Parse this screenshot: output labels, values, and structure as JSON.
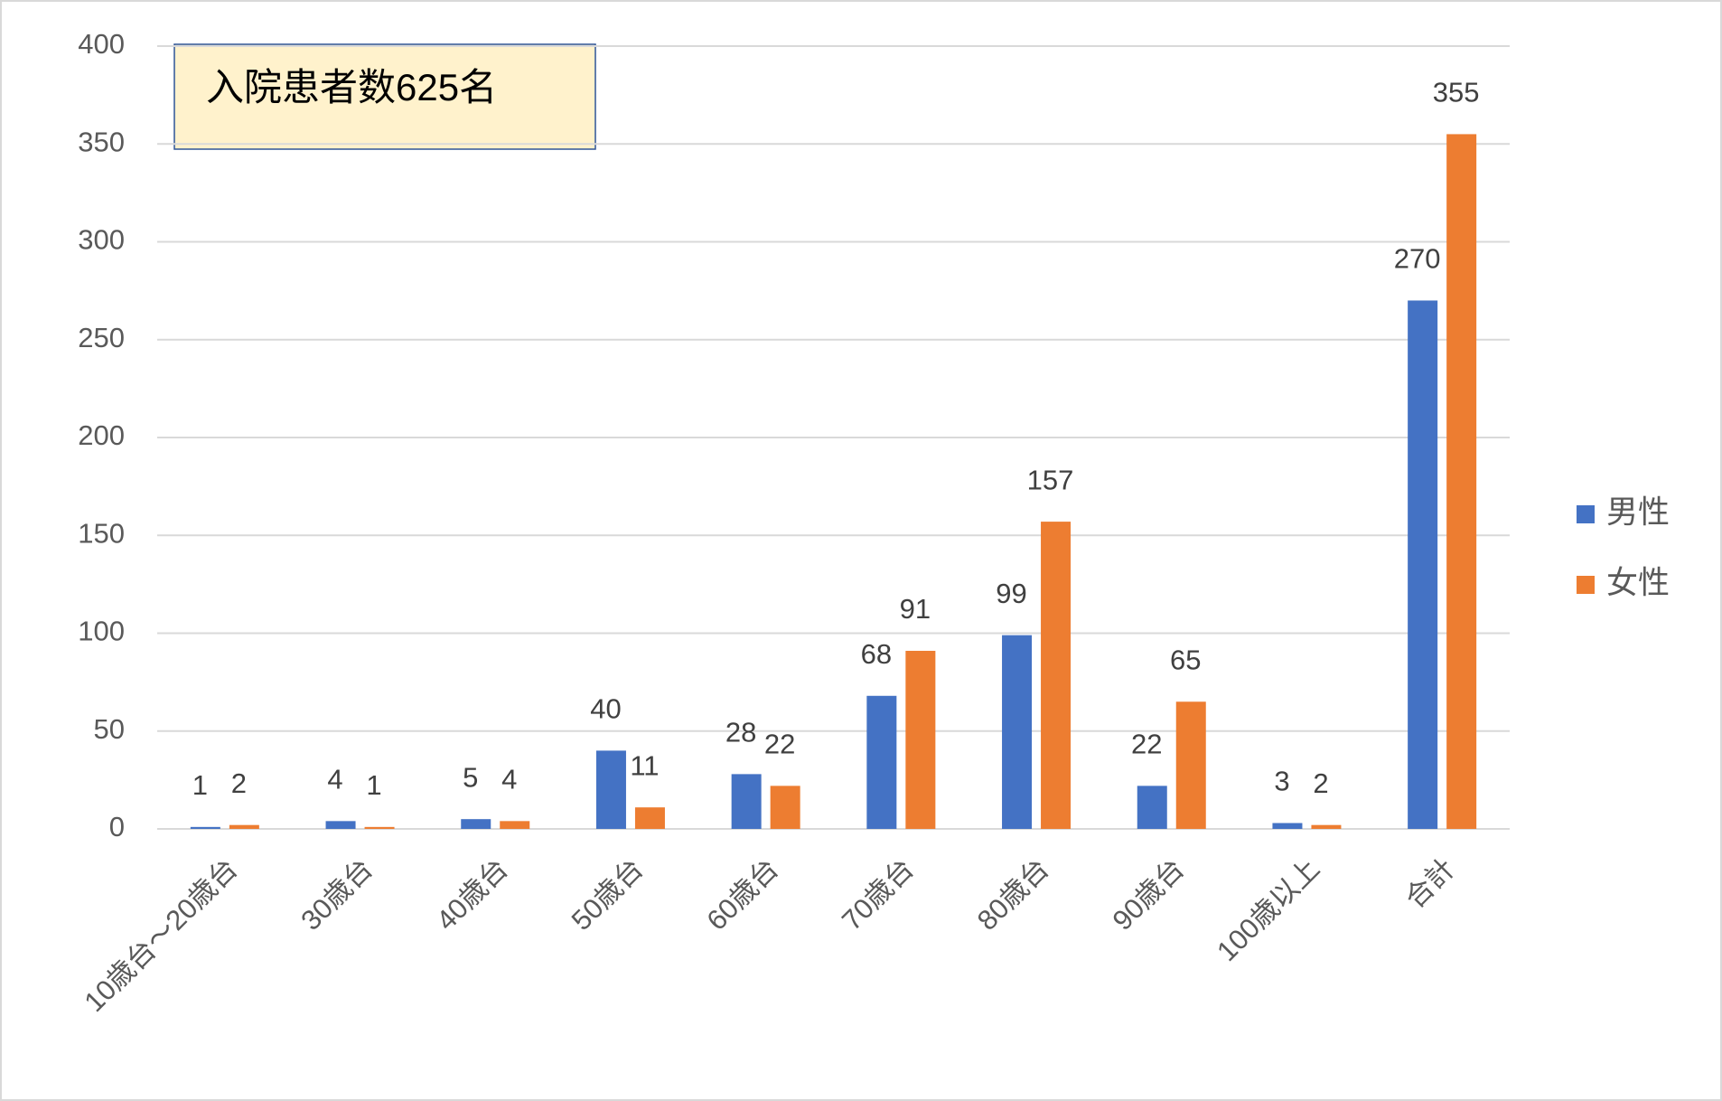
{
  "chart_data": {
    "type": "bar",
    "annotation": "入院患者数625名",
    "categories": [
      "10歳台～20歳台",
      "30歳台",
      "40歳台",
      "50歳台",
      "60歳台",
      "70歳台",
      "80歳台",
      "90歳台",
      "100歳以上",
      "合計"
    ],
    "series": [
      {
        "name": "男性",
        "color": "#4472c4",
        "values": [
          1,
          4,
          5,
          40,
          28,
          68,
          99,
          22,
          3,
          270
        ]
      },
      {
        "name": "女性",
        "color": "#ed7d31",
        "values": [
          2,
          1,
          4,
          11,
          22,
          91,
          157,
          65,
          2,
          355
        ]
      }
    ],
    "ylim": [
      0,
      400
    ],
    "yticks": [
      0,
      50,
      100,
      150,
      200,
      250,
      300,
      350,
      400
    ],
    "grid": true,
    "legend": "right"
  }
}
